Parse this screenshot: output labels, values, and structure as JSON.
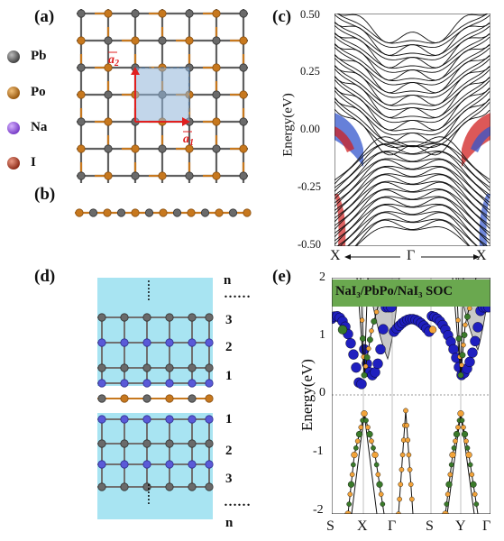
{
  "panels": {
    "a": "(a)",
    "b": "(b)",
    "c": "(c)",
    "d": "(d)",
    "e": "(e)"
  },
  "legend": [
    {
      "label": "Pb",
      "color": "#606060"
    },
    {
      "label": "Po",
      "color": "#c7781e"
    },
    {
      "label": "Na",
      "color": "#9a5ee0"
    },
    {
      "label": "I",
      "color": "#b7462d"
    }
  ],
  "lattice_vectors": {
    "a1": "a⃗1",
    "a2": "a⃗2"
  },
  "panel_c": {
    "ylabel": "Energy(eV)",
    "yticks": [
      "0.50",
      "0.25",
      "0.00",
      "-0.25",
      "-0.50"
    ],
    "xlabels": {
      "left": "X",
      "center": "Γ",
      "right": "X"
    }
  },
  "panel_d": {
    "top_labels": [
      "n",
      "……",
      "3",
      "2",
      "1"
    ],
    "bottom_labels": [
      "1",
      "2",
      "3",
      "……",
      "n"
    ],
    "dots": "……"
  },
  "panel_e": {
    "title": "NaI₃/PbPo/NaI₃ SOC",
    "ylabel": "Energy(eV)",
    "yticks": [
      "2",
      "1",
      "0",
      "-1",
      "-2"
    ],
    "xticks": [
      "S",
      "X",
      "Γ",
      "S",
      "Y",
      "Γ"
    ]
  },
  "colors": {
    "pb": "#606060",
    "po": "#c7781e",
    "na": "#5a5ad8",
    "cell": "#8fb4d8",
    "vec": "#e02020",
    "slab": "#a8e4f2",
    "green": "#6aa84f",
    "blue": "#1f1fbf",
    "orange": "#f2a33a"
  }
}
